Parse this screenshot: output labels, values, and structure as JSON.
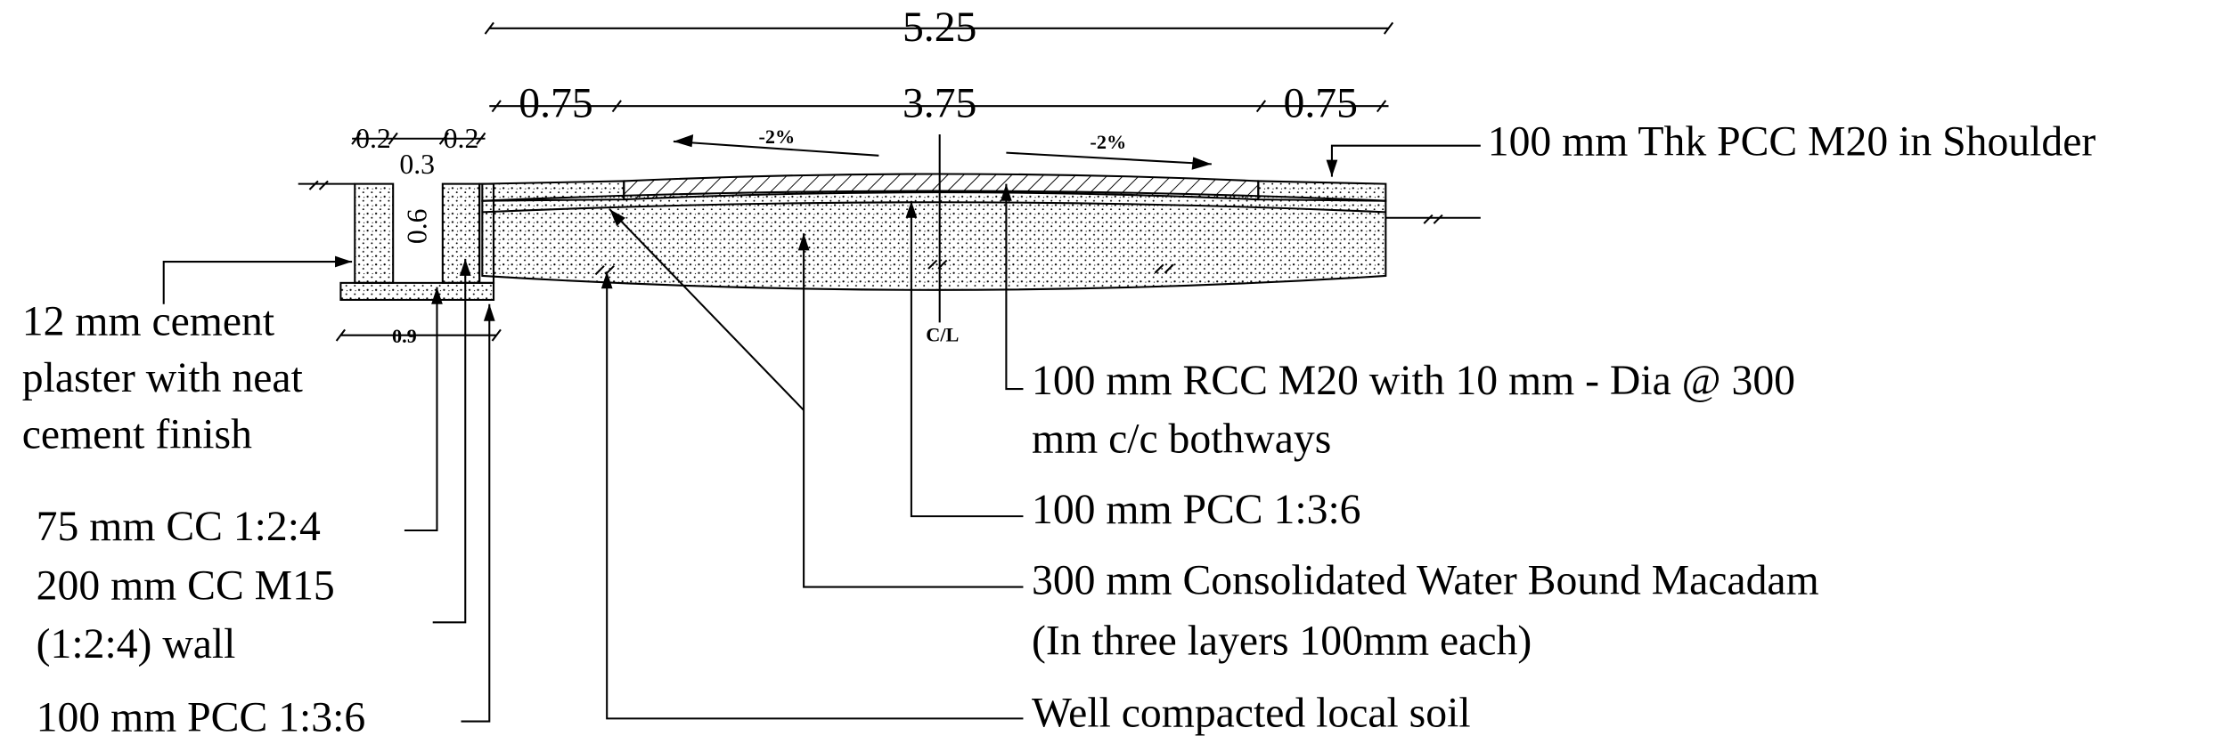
{
  "dimensions": {
    "overall": "5.25",
    "left_shoulder": "0.75",
    "carriageway": "3.75",
    "right_shoulder": "0.75",
    "drain_wall_left": "0.2",
    "drain_width": "0.3",
    "drain_wall_right": "0.2",
    "drain_depth": "0.6",
    "drain_base": "0.9",
    "camber_left": "-2%",
    "camber_right": "-2%",
    "centre_line": "C/L"
  },
  "labels": {
    "shoulder": "100 mm Thk PCC M20 in Shoulder",
    "plaster": [
      "12 mm cement",
      "plaster with neat",
      "cement finish"
    ],
    "drain_base": "75 mm CC 1:2:4",
    "drain_wall": [
      "200 mm CC M15",
      "(1:2:4) wall"
    ],
    "drain_bed": "100 mm PCC 1:3:6",
    "rcc": [
      "100 mm RCC M20 with 10 mm - Dia @ 300",
      "mm c/c bothways"
    ],
    "pcc": "100 mm PCC 1:3:6",
    "wbm": [
      "300 mm Consolidated Water Bound Macadam",
      "(In three layers 100mm each)"
    ],
    "soil": "Well compacted local soil"
  }
}
